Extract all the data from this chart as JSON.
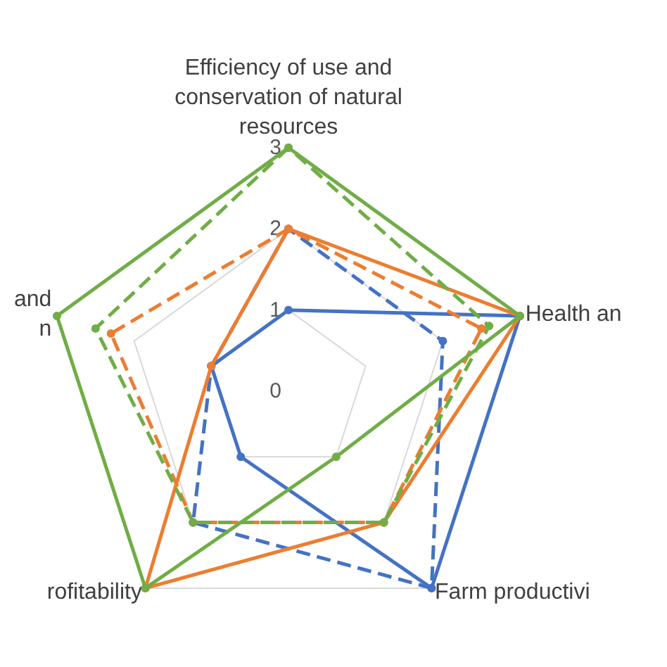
{
  "chart_data": {
    "type": "radar",
    "categories": [
      "Efficiency of use and\nconservation of natural\nresources",
      "Health an",
      "Farm productivi",
      "rofitability",
      "and\nn"
    ],
    "ylim": [
      0,
      3
    ],
    "yticks": [
      0,
      1,
      2,
      3
    ],
    "grid": true,
    "marker": "circle",
    "series": [
      {
        "color": "#4472c4",
        "line_style": "solid",
        "values": [
          1,
          3,
          3,
          1,
          1
        ]
      },
      {
        "color": "#4472c4",
        "line_style": "dashed",
        "values": [
          2,
          2,
          3,
          2,
          1
        ]
      },
      {
        "color": "#ed7d31",
        "line_style": "solid",
        "values": [
          2,
          3,
          2,
          3,
          1
        ]
      },
      {
        "color": "#ed7d31",
        "line_style": "dashed",
        "values": [
          2,
          2.5,
          2,
          2,
          2.3
        ]
      },
      {
        "color": "#70ad47",
        "line_style": "solid",
        "values": [
          3,
          3,
          1,
          3,
          3
        ]
      },
      {
        "color": "#70ad47",
        "line_style": "dashed",
        "values": [
          3,
          2.6,
          2,
          2,
          2.5
        ]
      }
    ]
  }
}
